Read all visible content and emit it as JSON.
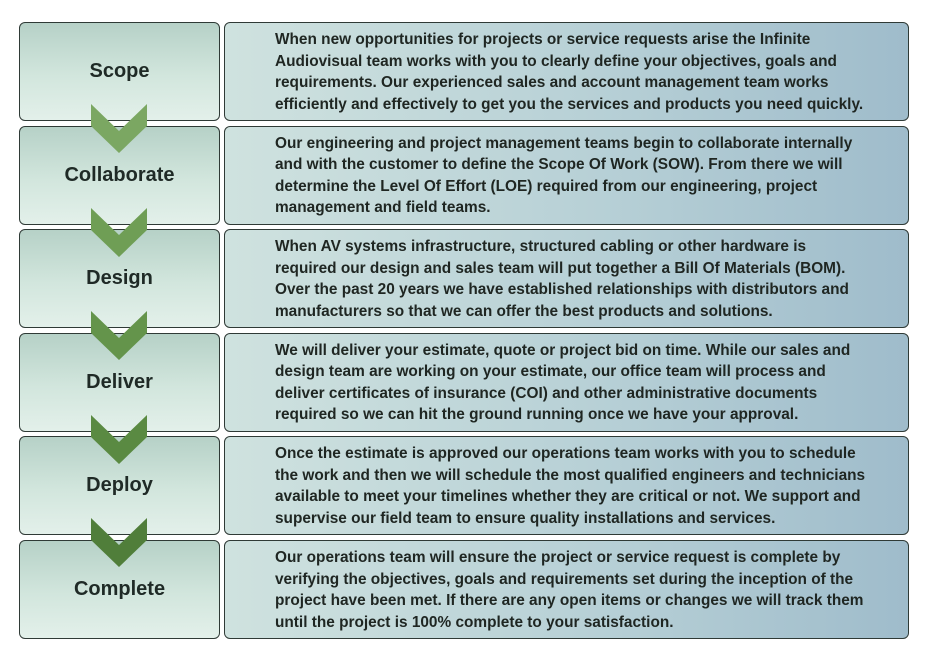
{
  "steps": [
    {
      "label": "Scope",
      "description": "When new opportunities for projects or service requests arise the Infinite\nAudiovisual team works with you to clearly define your objectives, goals and\nrequirements.  Our experienced sales and account management team works\nefficiently and effectively to get you the services and products you need quickly."
    },
    {
      "label": "Collaborate",
      "description": "Our engineering and project management teams begin to collaborate internally\nand with the customer to define the Scope Of Work (SOW).  From there we will\ndetermine the Level Of Effort (LOE) required from our engineering, project\nmanagement and field teams."
    },
    {
      "label": "Design",
      "description": "When AV systems infrastructure, structured cabling or other hardware is\nrequired our design and sales team will put together a Bill Of Materials (BOM).\nOver the past 20 years we have established relationships with distributors and\nmanufacturers so that we can offer the best products and solutions."
    },
    {
      "label": "Deliver",
      "description": "We will deliver your estimate, quote or project bid on time. While our sales and\ndesign team are working on your estimate, our office team will process and\ndeliver certificates of insurance (COI) and other administrative documents\nrequired so we can hit the ground running once we have your approval."
    },
    {
      "label": "Deploy",
      "description": "Once the estimate is approved our operations team works with you to schedule\nthe work and then we will schedule the most qualified engineers and technicians\navailable to meet your timelines whether they are critical or not. We support and\nsupervise our field team to ensure quality installations and services."
    },
    {
      "label": "Complete",
      "description": "Our operations team will ensure the project or service request is complete by\nverifying the objectives, goals and requirements set during the inception of the\nproject have been met. If there are any open items or changes we will track them\nuntil the project is 100% complete to your satisfaction."
    }
  ],
  "colors": {
    "chevrons": [
      "#7ba762",
      "#6f9e55",
      "#64944b",
      "#5a8a42",
      "#507e3a"
    ]
  }
}
